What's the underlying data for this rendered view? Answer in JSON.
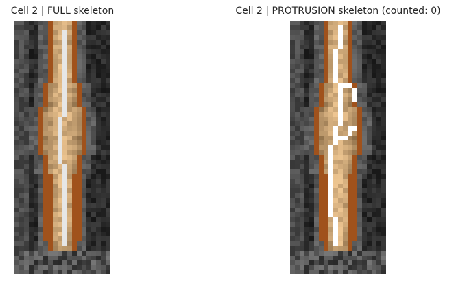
{
  "panels": [
    {
      "title": "Cell 2 | FULL skeleton",
      "skeleton": "full",
      "skeleton_color": "#e6e6e6"
    },
    {
      "title": "Cell 2 | PROTRUSION skeleton (counted: 0)",
      "skeleton": "protrusion",
      "skeleton_color": "#ffffff"
    }
  ],
  "colors": {
    "background": "#ffffff",
    "image_background": "#0e0e0e",
    "cell_outline": "#a0521c",
    "cell_fill_light": "#f2c994",
    "cell_fill_dark": "#5e4426"
  }
}
